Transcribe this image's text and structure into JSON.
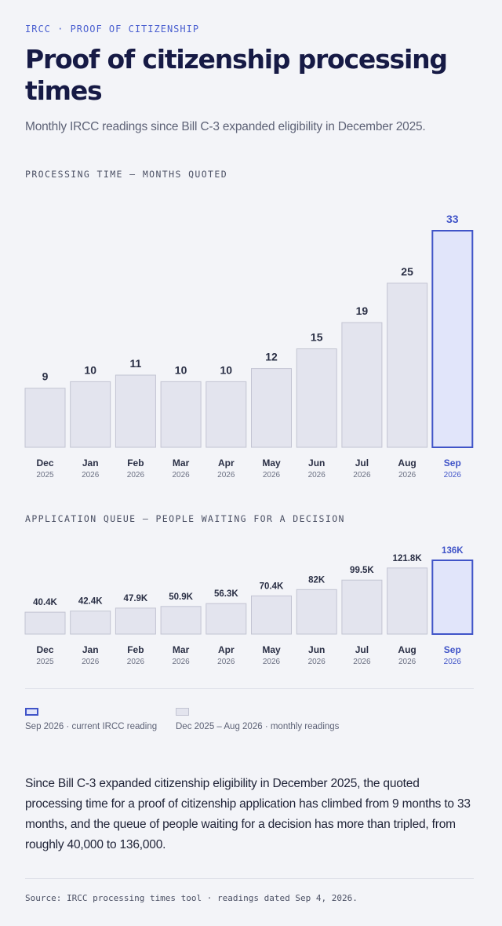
{
  "header": {
    "eyebrow": "IRCC · PROOF OF CITIZENSHIP",
    "title": "Proof of citizenship processing times",
    "subtitle": "Monthly IRCC readings since Bill C-3 expanded eligibility in December 2025."
  },
  "colors": {
    "accent": "#4054c8",
    "current_fill": "#e1e5fa",
    "bar_fill": "#e3e4ee",
    "bar_stroke": "#c2c4d2",
    "label_dark": "#2a2f45"
  },
  "chart_data": [
    {
      "type": "bar",
      "section_label": "PROCESSING TIME — MONTHS QUOTED",
      "categories": [
        "Dec",
        "Jan",
        "Feb",
        "Mar",
        "Apr",
        "May",
        "Jun",
        "Jul",
        "Aug",
        "Sep"
      ],
      "years": [
        "2025",
        "2026",
        "2026",
        "2026",
        "2026",
        "2026",
        "2026",
        "2026",
        "2026",
        "2026"
      ],
      "values": [
        9,
        10,
        11,
        10,
        10,
        12,
        15,
        19,
        25,
        33
      ],
      "value_labels": [
        "9",
        "10",
        "11",
        "10",
        "10",
        "12",
        "15",
        "19",
        "25",
        "33"
      ],
      "highlight_index": 9,
      "ylim": [
        0,
        33
      ],
      "grid": false
    },
    {
      "type": "bar",
      "section_label": "APPLICATION QUEUE — PEOPLE WAITING FOR A DECISION",
      "categories": [
        "Dec",
        "Jan",
        "Feb",
        "Mar",
        "Apr",
        "May",
        "Jun",
        "Jul",
        "Aug",
        "Sep"
      ],
      "years": [
        "2025",
        "2026",
        "2026",
        "2026",
        "2026",
        "2026",
        "2026",
        "2026",
        "2026",
        "2026"
      ],
      "values": [
        40400,
        42400,
        47900,
        50900,
        56300,
        70400,
        82000,
        99500,
        121800,
        136000
      ],
      "value_labels": [
        "40.4K",
        "42.4K",
        "47.9K",
        "50.9K",
        "56.3K",
        "70.4K",
        "82K",
        "99.5K",
        "121.8K",
        "136K"
      ],
      "highlight_index": 9,
      "ylim": [
        0,
        136000
      ],
      "grid": false
    }
  ],
  "legend": {
    "current_label": "Sep 2026 · current IRCC reading",
    "monthly_label": "Dec 2025 – Aug 2026 · monthly readings"
  },
  "summary": {
    "text": "Since Bill C-3 expanded citizenship eligibility in December 2025, the quoted processing time for a proof of citizenship application has climbed from 9 months to 33 months, and the queue of people waiting for a decision has more than tripled, from roughly 40,000 to 136,000."
  },
  "footer": {
    "source": "Source: IRCC processing times tool · readings dated Sep 4, 2026."
  }
}
